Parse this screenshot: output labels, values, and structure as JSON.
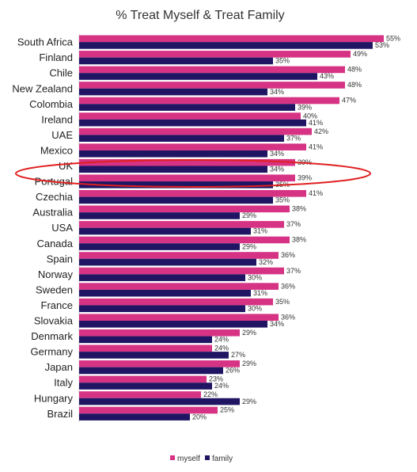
{
  "chart_data": {
    "type": "bar",
    "orientation": "horizontal",
    "title": "% Treat Myself & Treat Family",
    "categories": [
      "South Africa",
      "Finland",
      "Chile",
      "New Zealand",
      "Colombia",
      "Ireland",
      "UAE",
      "Mexico",
      "UK",
      "Portugal",
      "Czechia",
      "Australia",
      "USA",
      "Canada",
      "Spain",
      "Norway",
      "Sweden",
      "France",
      "Slovakia",
      "Denmark",
      "Germany",
      "Japan",
      "Italy",
      "Hungary",
      "Brazil"
    ],
    "series": [
      {
        "name": "myself",
        "color": "#d63384",
        "values": [
          55,
          49,
          48,
          48,
          47,
          40,
          42,
          41,
          39,
          39,
          41,
          38,
          37,
          38,
          36,
          37,
          36,
          35,
          36,
          29,
          24,
          29,
          23,
          22,
          25
        ],
        "labels": [
          "55%",
          "49%",
          "48%",
          "48%",
          "47%",
          "40%",
          "42%",
          "41%",
          "39%",
          "39%",
          "41%",
          "38%",
          "37%",
          "38%",
          "36%",
          "37%",
          "36%",
          "35%",
          "36%",
          "29%",
          "24%",
          "29%",
          "23%",
          "22%",
          "25%"
        ]
      },
      {
        "name": "family",
        "color": "#1f1563",
        "values": [
          53,
          35,
          43,
          34,
          39,
          41,
          37,
          34,
          34,
          35,
          35,
          29,
          31,
          29,
          32,
          30,
          31,
          30,
          34,
          24,
          27,
          26,
          24,
          29,
          20
        ],
        "labels": [
          "53%",
          "35%",
          "43%",
          "34%",
          "39%",
          "41%",
          "37%",
          "34%",
          "34%",
          "35%",
          "35%",
          "29%",
          "31%",
          "29%",
          "32%",
          "30%",
          "31%",
          "30%",
          "34%",
          "24%",
          "27%",
          "26%",
          "24%",
          "29%",
          "20%"
        ]
      }
    ],
    "xlim": [
      0,
      55
    ],
    "grid": false,
    "legend_position": "bottom",
    "annotation": {
      "type": "ellipse",
      "color": "#e02020",
      "around": [
        "UK",
        "Portugal"
      ]
    }
  }
}
